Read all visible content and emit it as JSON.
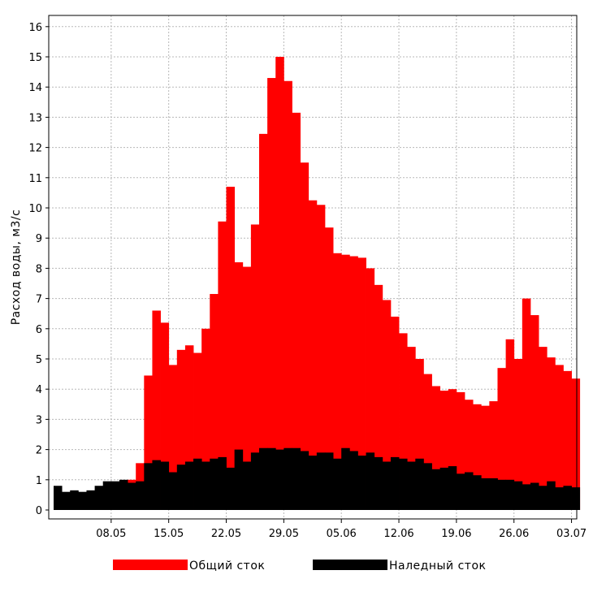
{
  "chart_data": {
    "type": "bar",
    "ylabel": "Расход воды, м3/с",
    "ylim": [
      0,
      16.5
    ],
    "yticks": [
      0,
      1,
      2,
      3,
      4,
      5,
      6,
      7,
      8,
      9,
      10,
      11,
      12,
      13,
      14,
      15,
      16
    ],
    "grid": true,
    "legend_position": "bottom",
    "x_tick_labels": [
      "08.05",
      "15.05",
      "22.05",
      "29.05",
      "05.06",
      "12.06",
      "19.06",
      "26.06",
      "03.07"
    ],
    "x_tick_day_index": [
      7,
      14,
      21,
      28,
      35,
      42,
      49,
      56,
      63
    ],
    "categories": [
      "02.05",
      "03.05",
      "04.05",
      "05.05",
      "06.05",
      "07.05",
      "08.05",
      "09.05",
      "10.05",
      "11.05",
      "12.05",
      "13.05",
      "14.05",
      "15.05",
      "16.05",
      "17.05",
      "18.05",
      "19.05",
      "20.05",
      "21.05",
      "22.05",
      "23.05",
      "24.05",
      "25.05",
      "26.05",
      "27.05",
      "28.05",
      "29.05",
      "30.05",
      "31.05",
      "01.06",
      "02.06",
      "03.06",
      "04.06",
      "05.06",
      "06.06",
      "07.06",
      "08.06",
      "09.06",
      "10.06",
      "11.06",
      "12.06",
      "13.06",
      "14.06",
      "15.06",
      "16.06",
      "17.06",
      "18.06",
      "19.06",
      "20.06",
      "21.06",
      "22.06",
      "23.06",
      "24.06",
      "25.06",
      "26.06",
      "27.06",
      "28.06",
      "29.06",
      "30.06",
      "01.07",
      "02.07",
      "03.07",
      "04.07"
    ],
    "series": [
      {
        "name": "Общий сток",
        "color": "#ff0000",
        "values": [
          0,
          0,
          0,
          0,
          0,
          0,
          0,
          0,
          0,
          1.0,
          1.55,
          4.45,
          6.6,
          6.2,
          4.8,
          5.3,
          5.45,
          5.2,
          6.0,
          7.15,
          9.55,
          10.7,
          8.2,
          8.05,
          9.45,
          12.45,
          14.3,
          15.0,
          14.2,
          13.15,
          11.5,
          10.25,
          10.1,
          9.35,
          8.5,
          8.45,
          8.4,
          8.35,
          8.0,
          7.45,
          6.95,
          6.4,
          5.85,
          5.4,
          5.0,
          4.5,
          4.1,
          3.95,
          4.0,
          3.9,
          3.65,
          3.5,
          3.45,
          3.6,
          4.7,
          5.65,
          5.0,
          7.0,
          6.45,
          5.4,
          5.05,
          4.8,
          4.6,
          4.35
        ]
      },
      {
        "name": "Наледный сток",
        "color": "#000000",
        "values": [
          0.8,
          0.6,
          0.65,
          0.6,
          0.65,
          0.8,
          0.95,
          0.95,
          1.0,
          0.9,
          0.95,
          1.55,
          1.65,
          1.6,
          1.25,
          1.5,
          1.6,
          1.7,
          1.6,
          1.7,
          1.75,
          1.4,
          2.0,
          1.6,
          1.9,
          2.05,
          2.05,
          2.0,
          2.05,
          2.05,
          1.95,
          1.8,
          1.9,
          1.9,
          1.7,
          2.05,
          1.95,
          1.8,
          1.9,
          1.75,
          1.6,
          1.75,
          1.7,
          1.6,
          1.7,
          1.55,
          1.35,
          1.4,
          1.45,
          1.2,
          1.25,
          1.15,
          1.05,
          1.05,
          1.0,
          1.0,
          0.95,
          0.85,
          0.9,
          0.8,
          0.95,
          0.75,
          0.8,
          0.75
        ]
      }
    ]
  }
}
